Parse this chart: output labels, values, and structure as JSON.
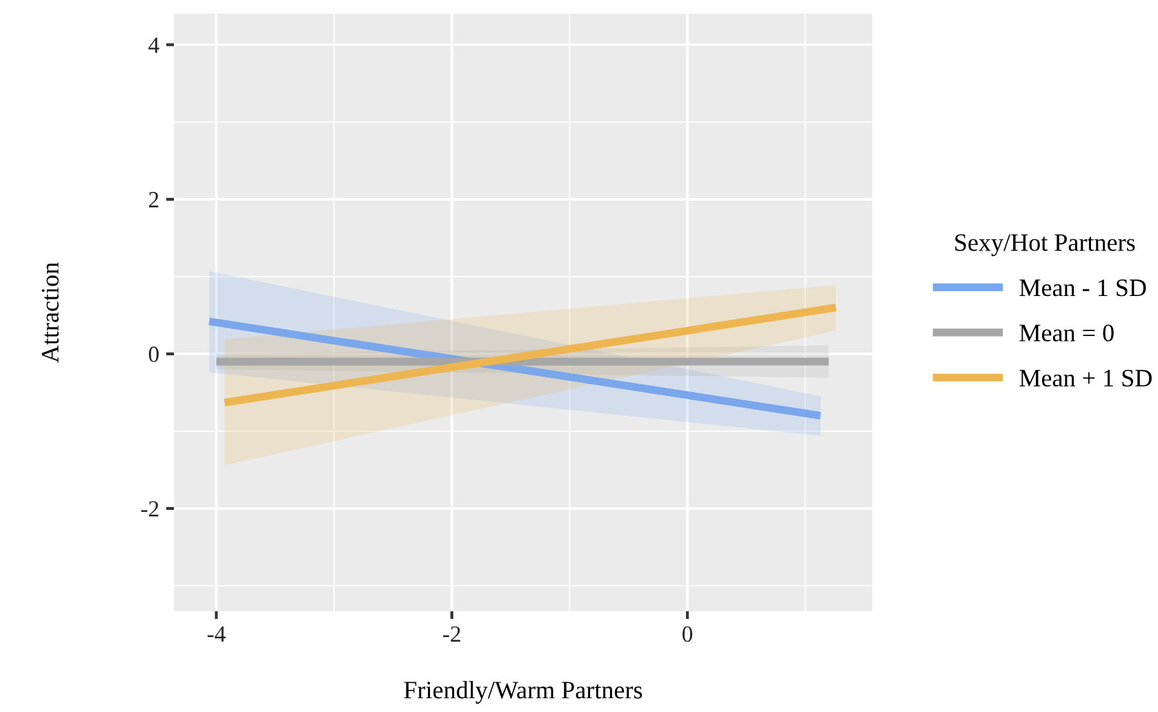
{
  "chart_data": {
    "type": "line",
    "xlabel": "Friendly/Warm Partners",
    "ylabel": "Attraction",
    "legend_title": "Sexy/Hot Partners",
    "series": [
      {
        "name": "Mean - 1 SD",
        "color": "#7aa6ec",
        "x": [
          -4.06,
          1.13
        ],
        "values": [
          0.42,
          -0.8
        ],
        "lower": [
          -0.24,
          -1.06
        ],
        "upper": [
          1.07,
          -0.55
        ]
      },
      {
        "name": "Mean = 0",
        "color": "#a6a6a6",
        "x": [
          -4.0,
          1.2
        ],
        "values": [
          -0.1,
          -0.1
        ],
        "lower": [
          -0.2,
          -0.31
        ],
        "upper": [
          0.0,
          0.11
        ]
      },
      {
        "name": "Mean + 1 SD",
        "color": "#ecb550",
        "x": [
          -3.93,
          1.26
        ],
        "values": [
          -0.63,
          0.6
        ],
        "lower": [
          -1.44,
          0.3
        ],
        "upper": [
          0.19,
          0.89
        ]
      }
    ],
    "xlim": [
      -4.36,
      1.57
    ],
    "ylim": [
      -3.33,
      4.4
    ],
    "xticks": [
      {
        "value": -4,
        "label": "-4"
      },
      {
        "value": -2,
        "label": "-2"
      },
      0
    ],
    "yticks": [
      {
        "value": -2,
        "label": "-2"
      },
      0,
      2,
      4
    ],
    "grid": true,
    "legend": "right",
    "line_style": "solid",
    "marker": "none"
  }
}
